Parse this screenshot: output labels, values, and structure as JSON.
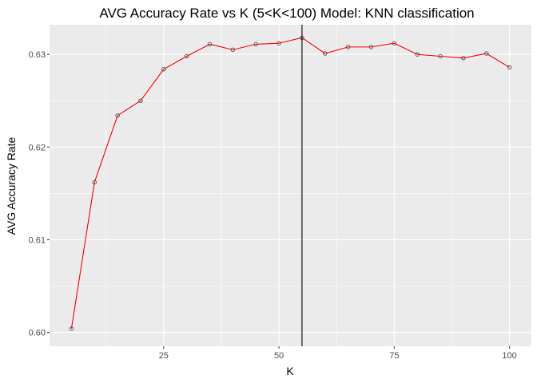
{
  "chart_data": {
    "type": "line",
    "title": "AVG Accuracy Rate vs K (5<K<100) Model: KNN classification",
    "xlabel": "K",
    "ylabel": "AVG Accuracy Rate",
    "xlim": [
      0.25,
      104.75
    ],
    "ylim": [
      0.5985,
      0.6332
    ],
    "x_ticks": [
      25,
      50,
      75,
      100
    ],
    "x_tick_labels": [
      "25",
      "50",
      "75",
      "100"
    ],
    "y_ticks": [
      0.6,
      0.61,
      0.62,
      0.63
    ],
    "y_tick_labels": [
      "0.60",
      "0.61",
      "0.62",
      "0.63"
    ],
    "grid": true,
    "legend": "none",
    "vline": {
      "x": 55
    },
    "series": [
      {
        "x": [
          5,
          10,
          15,
          20,
          25,
          30,
          35,
          40,
          45,
          50,
          55,
          60,
          65,
          70,
          75,
          80,
          85,
          90,
          95,
          100
        ],
        "values": [
          0.6004,
          0.6162,
          0.6234,
          0.625,
          0.6284,
          0.6298,
          0.6311,
          0.6305,
          0.6311,
          0.6312,
          0.6318,
          0.6301,
          0.6308,
          0.6308,
          0.6312,
          0.63,
          0.6298,
          0.6296,
          0.6301,
          0.6286
        ]
      }
    ],
    "colors": {
      "panel": "#ebebeb",
      "grid_major": "#ffffff",
      "line": "#ff0000",
      "point": "#555555",
      "vline": "#000000"
    }
  }
}
